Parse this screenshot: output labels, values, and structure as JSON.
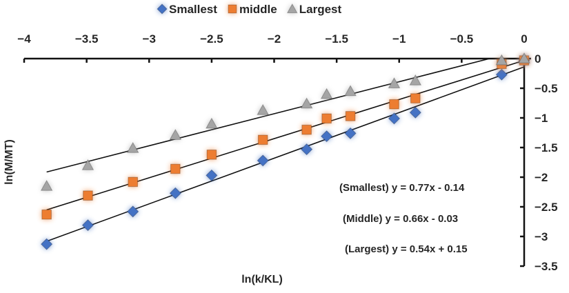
{
  "chart_data": {
    "type": "scatter",
    "xlabel": "ln(k/KL)",
    "ylabel": "ln(M/MT)",
    "xlim": [
      -4,
      0
    ],
    "ylim": [
      -3.5,
      0
    ],
    "x_ticks": [
      "−4",
      "−3.5",
      "−3",
      "−2.5",
      "−2",
      "−1.5",
      "−1",
      "−0.5",
      "0"
    ],
    "y_ticks": [
      "0",
      "−0.5",
      "−1",
      "−1.5",
      "−2",
      "−2.5",
      "−3",
      "−3.5"
    ],
    "x_axis_position": "top",
    "y_axis_position": "right",
    "grid": false,
    "legend_position": "top",
    "x": [
      -3.82,
      -3.49,
      -3.13,
      -2.79,
      -2.5,
      -2.09,
      -1.74,
      -1.58,
      -1.39,
      -1.04,
      -0.87,
      -0.18,
      0
    ],
    "series": [
      {
        "name": "Smallest",
        "marker": "diamond",
        "color": "#4472c4",
        "values": [
          -3.13,
          -2.81,
          -2.58,
          -2.27,
          -1.97,
          -1.72,
          -1.53,
          -1.31,
          -1.26,
          -1.01,
          -0.91,
          -0.27,
          -0.03
        ],
        "trendline": {
          "slope": 0.77,
          "intercept": -0.14,
          "label": "(Smallest) y = 0.77x - 0.14"
        }
      },
      {
        "name": "middle",
        "marker": "square",
        "color": "#ed7d31",
        "values": [
          -2.63,
          -2.31,
          -2.08,
          -1.86,
          -1.62,
          -1.37,
          -1.2,
          -1.01,
          -0.97,
          -0.77,
          -0.67,
          -0.09,
          -0.03
        ],
        "trendline": {
          "slope": 0.66,
          "intercept": -0.03,
          "label": "(Middle) y = 0.66x - 0.03"
        }
      },
      {
        "name": "Largest",
        "marker": "triangle",
        "color": "#a5a5a5",
        "values": [
          -2.15,
          -1.8,
          -1.51,
          -1.29,
          -1.1,
          -0.87,
          -0.76,
          -0.6,
          -0.55,
          -0.42,
          -0.37,
          -0.03,
          0
        ],
        "trendline": {
          "slope": 0.54,
          "intercept": 0.15,
          "label": "(Largest) y = 0.54x + 0.15"
        }
      }
    ]
  }
}
